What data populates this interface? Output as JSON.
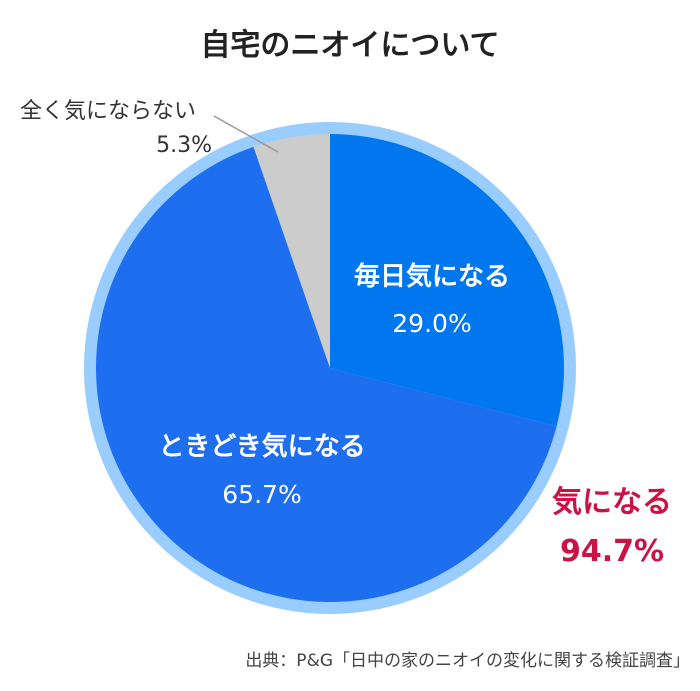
{
  "chart_data": {
    "type": "pie",
    "title": "自宅のニオイについて",
    "slices": [
      {
        "label": "毎日気になる",
        "value": 29.0,
        "value_label": "29.0%",
        "color": "#0077ee"
      },
      {
        "label": "ときどき気になる",
        "value": 65.7,
        "value_label": "65.7%",
        "color": "#1e6ef0"
      },
      {
        "label": "全く気にならない",
        "value": 5.3,
        "value_label": "5.3%",
        "color": "#cccccc"
      }
    ],
    "ring_color": "#99ccff",
    "total_callout": {
      "label": "気になる",
      "value_label": "94.7%",
      "color": "#cc1144"
    },
    "source": "出典：P&G「日中の家のニオイの変化に関する検証調査」"
  }
}
